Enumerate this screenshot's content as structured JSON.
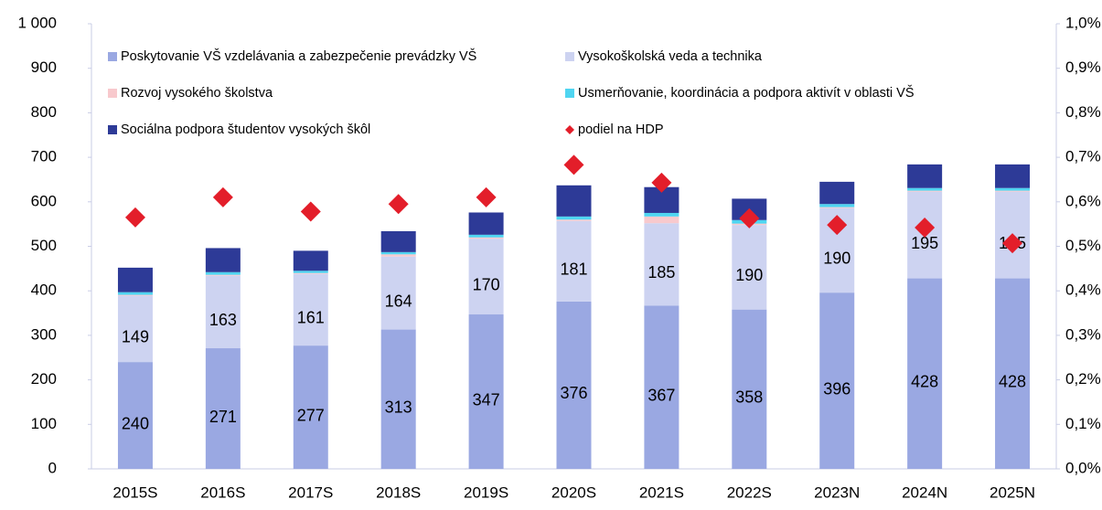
{
  "chart_data": {
    "type": "bar",
    "stacked": true,
    "categories": [
      "2015S",
      "2016S",
      "2017S",
      "2018S",
      "2019S",
      "2020S",
      "2021S",
      "2022S",
      "2023N",
      "2024N",
      "2025N"
    ],
    "series": [
      {
        "name": "Poskytovanie VŠ vzdelávania a zabezpečenie prevádzky VŠ",
        "color": "#9aa8e2",
        "values": [
          240,
          271,
          277,
          313,
          347,
          376,
          367,
          358,
          396,
          428,
          428
        ],
        "show_labels": true
      },
      {
        "name": "Vysokoškolská veda a technika",
        "color": "#cdd3f1",
        "values": [
          149,
          163,
          161,
          164,
          170,
          181,
          185,
          190,
          190,
          195,
          195
        ],
        "show_labels": true
      },
      {
        "name": "Rozvoj vysokého školstva",
        "color": "#f8c9cd",
        "values": [
          2,
          2,
          2,
          5,
          3,
          3,
          15,
          3,
          2,
          2,
          2
        ]
      },
      {
        "name": "Usmerňovanie, koordinácia a podpora aktivít v oblasti VŠ",
        "color": "#4fd5f1",
        "values": [
          6,
          6,
          5,
          5,
          6,
          7,
          8,
          8,
          7,
          6,
          6
        ]
      },
      {
        "name": "Sociálna podpora študentov vysokých škôl",
        "color": "#2d3a97",
        "values": [
          55,
          54,
          45,
          47,
          50,
          70,
          58,
          48,
          50,
          53,
          53
        ]
      },
      {
        "name": "podiel na HDP",
        "color": "#e31e2a",
        "type": "scatter",
        "marker": "diamond",
        "axis": "y2",
        "values": [
          0.565,
          0.61,
          0.578,
          0.595,
          0.61,
          0.683,
          0.643,
          0.563,
          0.548,
          0.542,
          0.507
        ]
      }
    ],
    "ylim": [
      0,
      1000
    ],
    "yticks": [
      0,
      100,
      200,
      300,
      400,
      500,
      600,
      700,
      800,
      900,
      {
        "value": 1000,
        "label": "1 000"
      }
    ],
    "y2lim": [
      0,
      1.0
    ],
    "y2ticks": [
      {
        "value": 0,
        "label": "0,0%"
      },
      {
        "value": 0.1,
        "label": "0,1%"
      },
      {
        "value": 0.2,
        "label": "0,2%"
      },
      {
        "value": 0.3,
        "label": "0,3%"
      },
      {
        "value": 0.4,
        "label": "0,4%"
      },
      {
        "value": 0.5,
        "label": "0,5%"
      },
      {
        "value": 0.6,
        "label": "0,6%"
      },
      {
        "value": 0.7,
        "label": "0,7%"
      },
      {
        "value": 0.8,
        "label": "0,8%"
      },
      {
        "value": 0.9,
        "label": "0,9%"
      },
      {
        "value": 1.0,
        "label": "1,0%"
      }
    ],
    "grid": false,
    "legend": "top"
  }
}
